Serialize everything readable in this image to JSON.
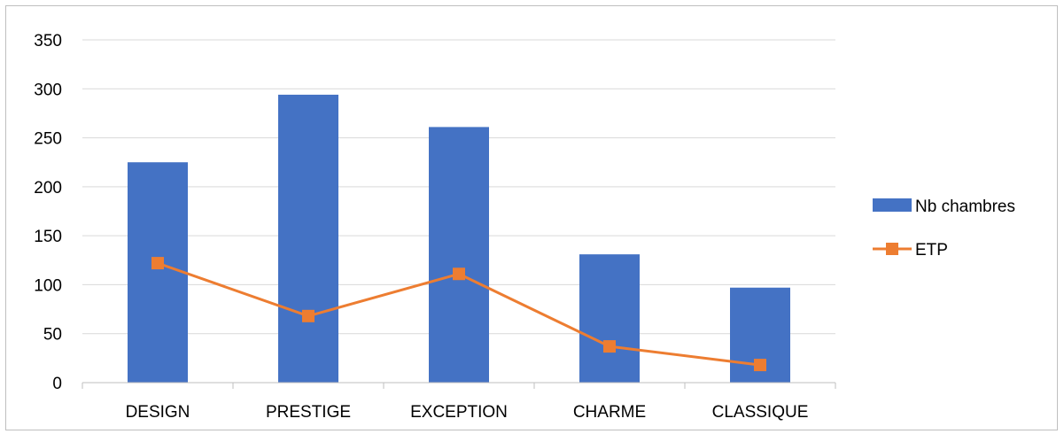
{
  "chart_data": {
    "type": "bar",
    "categories": [
      "DESIGN",
      "PRESTIGE",
      "EXCEPTION",
      "CHARME",
      "CLASSIQUE"
    ],
    "series": [
      {
        "name": "Nb chambres",
        "type": "bar",
        "color": "#4472c4",
        "values": [
          225,
          294,
          261,
          131,
          97
        ]
      },
      {
        "name": "ETP",
        "type": "line",
        "color": "#ed7d31",
        "marker": "square",
        "values": [
          122,
          68,
          111,
          37,
          18
        ]
      }
    ],
    "ylim": [
      0,
      350
    ],
    "yticks": [
      0,
      50,
      100,
      150,
      200,
      250,
      300,
      350
    ],
    "grid": true,
    "legend_position": "right"
  }
}
